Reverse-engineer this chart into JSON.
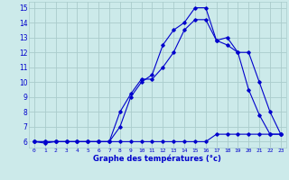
{
  "xlabel": "Graphe des températures (°c)",
  "background_color": "#cceaea",
  "grid_color": "#aacccc",
  "line_color": "#0000cc",
  "xlim": [
    -0.5,
    23.5
  ],
  "ylim": [
    5.6,
    15.4
  ],
  "yticks": [
    6,
    7,
    8,
    9,
    10,
    11,
    12,
    13,
    14,
    15
  ],
  "xticks": [
    0,
    1,
    2,
    3,
    4,
    5,
    6,
    7,
    8,
    9,
    10,
    11,
    12,
    13,
    14,
    15,
    16,
    17,
    18,
    19,
    20,
    21,
    22,
    23
  ],
  "line1_x": [
    0,
    1,
    2,
    3,
    4,
    5,
    6,
    7,
    8,
    9,
    10,
    11,
    12,
    13,
    14,
    15,
    16,
    17,
    18,
    19,
    20,
    21,
    22,
    23
  ],
  "line1_y": [
    6.0,
    5.9,
    6.0,
    6.0,
    6.0,
    6.0,
    6.0,
    6.0,
    7.0,
    9.0,
    10.0,
    10.5,
    12.5,
    13.5,
    14.0,
    15.0,
    15.0,
    12.8,
    13.0,
    12.0,
    9.5,
    7.8,
    6.5,
    6.5
  ],
  "line2_x": [
    0,
    1,
    2,
    3,
    4,
    5,
    6,
    7,
    8,
    9,
    10,
    11,
    12,
    13,
    14,
    15,
    16,
    17,
    18,
    19,
    20,
    21,
    22,
    23
  ],
  "line2_y": [
    6.0,
    6.0,
    6.0,
    6.0,
    6.0,
    6.0,
    6.0,
    6.0,
    6.0,
    6.0,
    6.0,
    6.0,
    6.0,
    6.0,
    6.0,
    6.0,
    6.0,
    6.5,
    6.5,
    6.5,
    6.5,
    6.5,
    6.5,
    6.5
  ],
  "line3_x": [
    0,
    1,
    2,
    3,
    4,
    5,
    6,
    7,
    8,
    9,
    10,
    11,
    12,
    13,
    14,
    15,
    16,
    17,
    18,
    19,
    20,
    21,
    22,
    23
  ],
  "line3_y": [
    6.0,
    6.0,
    6.0,
    6.0,
    6.0,
    6.0,
    6.0,
    6.0,
    8.0,
    9.2,
    10.2,
    10.2,
    11.0,
    12.0,
    13.5,
    14.2,
    14.2,
    12.8,
    12.5,
    12.0,
    12.0,
    10.0,
    8.0,
    6.5
  ]
}
